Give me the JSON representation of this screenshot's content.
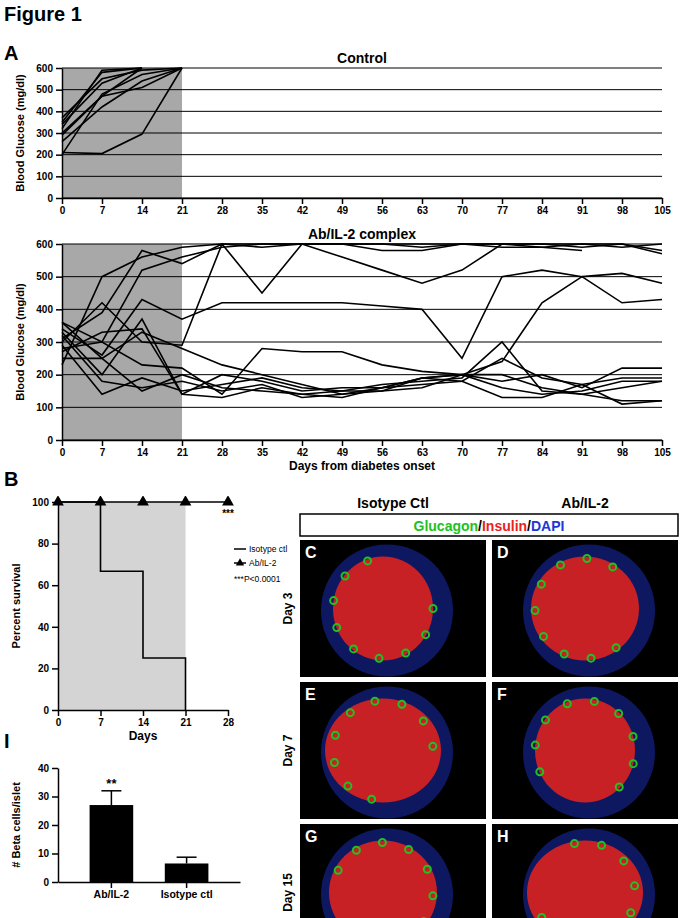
{
  "figure_title": "Figure 1",
  "panel_labels": [
    "A",
    "B",
    "C",
    "D",
    "E",
    "F",
    "G",
    "H",
    "I"
  ],
  "chart_data": [
    {
      "type": "line",
      "title": "Control",
      "ylabel": "Blood Glucose (mg/dl)",
      "color": "#000000",
      "grid": true,
      "x": [
        0,
        7,
        14,
        21
      ],
      "xlim": [
        0,
        105
      ],
      "xticks": [
        0,
        7,
        14,
        21,
        28,
        35,
        42,
        49,
        56,
        63,
        70,
        77,
        84,
        91,
        98,
        105
      ],
      "ylim": [
        0,
        600
      ],
      "yticks": [
        0,
        100,
        200,
        300,
        400,
        500,
        600
      ],
      "shaded_x": [
        0,
        21
      ],
      "series": [
        {
          "values": [
            210,
            205,
            295,
            600
          ]
        },
        {
          "values": [
            200,
            480,
            570,
            600
          ]
        },
        {
          "values": [
            290,
            470,
            510,
            600
          ]
        },
        {
          "values": [
            300,
            470,
            600,
            null
          ]
        },
        {
          "values": [
            340,
            530,
            600,
            null
          ]
        },
        {
          "values": [
            350,
            580,
            600,
            null
          ]
        },
        {
          "values": [
            320,
            590,
            600,
            null
          ]
        },
        {
          "values": [
            370,
            550,
            590,
            600
          ]
        },
        {
          "values": [
            260,
            420,
            540,
            600
          ]
        }
      ]
    },
    {
      "type": "line",
      "title": "Ab/IL-2 complex",
      "ylabel": "Blood Glucose (mg/dl)",
      "xlabel": "Days from diabetes onset",
      "color": "#000000",
      "grid": true,
      "x": [
        0,
        7,
        14,
        21,
        28,
        35,
        42,
        49,
        56,
        63,
        70,
        77,
        84,
        91,
        98,
        105
      ],
      "xlim": [
        0,
        105
      ],
      "xticks": [
        0,
        7,
        14,
        21,
        28,
        35,
        42,
        49,
        56,
        63,
        70,
        77,
        84,
        91,
        98,
        105
      ],
      "ylim": [
        0,
        600
      ],
      "yticks": [
        0,
        100,
        200,
        300,
        400,
        500,
        600
      ],
      "shaded_x": [
        0,
        21
      ],
      "series": [
        {
          "values": [
            230,
            500,
            560,
            590,
            600,
            600,
            600,
            600,
            600,
            600,
            600,
            600,
            600,
            600,
            600,
            580
          ]
        },
        {
          "values": [
            310,
            390,
            580,
            540,
            600,
            450,
            600,
            600,
            580,
            580,
            600,
            600,
            600,
            590,
            600,
            570
          ]
        },
        {
          "values": [
            360,
            300,
            520,
            560,
            590,
            600,
            600,
            560,
            520,
            480,
            520,
            600,
            590,
            600,
            590,
            600
          ]
        },
        {
          "values": [
            340,
            260,
            430,
            370,
            420,
            420,
            420,
            420,
            410,
            400,
            250,
            500,
            520,
            500,
            510,
            480
          ]
        },
        {
          "values": [
            300,
            420,
            300,
            290,
            600,
            590,
            600,
            600,
            600,
            590,
            600,
            590,
            590,
            580,
            null,
            null
          ]
        },
        {
          "values": [
            280,
            300,
            230,
            220,
            140,
            280,
            270,
            270,
            230,
            210,
            200,
            200,
            160,
            140,
            160,
            180
          ]
        },
        {
          "values": [
            270,
            330,
            340,
            140,
            200,
            180,
            150,
            160,
            160,
            170,
            180,
            250,
            190,
            170,
            110,
            120
          ]
        },
        {
          "values": [
            250,
            250,
            330,
            280,
            230,
            200,
            170,
            140,
            160,
            190,
            200,
            180,
            200,
            160,
            220,
            220
          ]
        },
        {
          "values": [
            330,
            200,
            370,
            140,
            130,
            160,
            140,
            150,
            150,
            160,
            200,
            240,
            420,
            500,
            420,
            430
          ]
        },
        {
          "values": [
            360,
            250,
            150,
            200,
            160,
            150,
            140,
            130,
            160,
            190,
            180,
            130,
            130,
            170,
            190,
            190
          ]
        },
        {
          "values": [
            290,
            140,
            190,
            150,
            170,
            190,
            160,
            150,
            170,
            180,
            190,
            300,
            150,
            140,
            120,
            120
          ]
        },
        {
          "values": [
            320,
            180,
            160,
            180,
            150,
            170,
            130,
            140,
            150,
            190,
            200,
            160,
            140,
            150,
            180,
            180
          ]
        }
      ]
    },
    {
      "type": "line",
      "line_style": "step",
      "ylabel": "Percent survival",
      "xlabel": "Days",
      "color": "#000000",
      "legend": "right",
      "xlim": [
        0,
        28
      ],
      "xticks": [
        0,
        7,
        14,
        21,
        28
      ],
      "ylim": [
        0,
        100
      ],
      "yticks": [
        0,
        20,
        40,
        60,
        80,
        100
      ],
      "shaded_x": [
        0,
        21
      ],
      "series": [
        {
          "name": "Isotype ctl",
          "x": [
            0,
            7,
            14,
            21
          ],
          "values": [
            100,
            66.7,
            25,
            0
          ]
        },
        {
          "name": "Ab/IL-2",
          "marker": "triangle",
          "x": [
            0,
            7,
            14,
            21,
            28
          ],
          "values": [
            100,
            100,
            100,
            100,
            100
          ]
        }
      ],
      "annotations": [
        {
          "text": "***",
          "x": 28,
          "y": 100
        },
        {
          "text": "***P<0.0001"
        }
      ]
    },
    {
      "type": "bar",
      "ylabel": "# Beta cells/islet",
      "color": "#000000",
      "categories": [
        "Ab/IL-2",
        "Isotype ctl"
      ],
      "values": [
        27,
        6.5
      ],
      "errors": [
        5,
        2.2
      ],
      "ylim": [
        0,
        40
      ],
      "yticks": [
        0,
        10,
        20,
        30,
        40
      ],
      "annotations": [
        {
          "text": "**",
          "category": "Ab/IL-2"
        }
      ]
    }
  ],
  "micrographs": {
    "columns": [
      "Isotype Ctl",
      "Ab/IL-2"
    ],
    "rows": [
      "Day 3",
      "Day 7",
      "Day 15"
    ],
    "separator": "/",
    "stains": [
      {
        "text": "Glucagon",
        "color": "#22c022"
      },
      {
        "text": "Insulin",
        "color": "#e8231c"
      },
      {
        "text": "DAPI",
        "color": "#2036d8"
      }
    ]
  }
}
